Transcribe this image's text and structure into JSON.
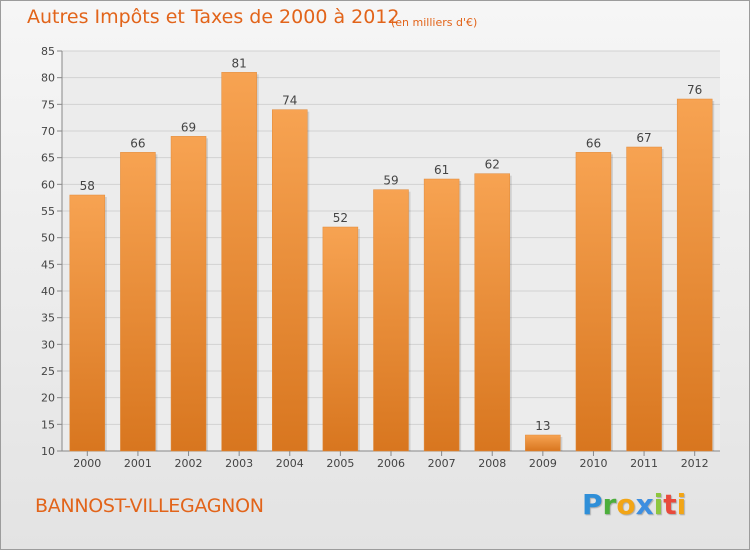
{
  "header": {
    "title": "Autres Impôts et Taxes de 2000 à 2012",
    "unit": "(en milliers d'€)"
  },
  "footer": {
    "commune": "BANNOST-VILLEGAGNON",
    "logo_letters": [
      "P",
      "r",
      "o",
      "x",
      "i",
      "t",
      "i"
    ],
    "logo_colors": [
      "#2f8fd8",
      "#4cae3c",
      "#f2a516",
      "#3d8ee0",
      "#8dc63f",
      "#e84a3c",
      "#f2a516"
    ]
  },
  "chart_data": {
    "type": "bar",
    "categories": [
      "2000",
      "2001",
      "2002",
      "2003",
      "2004",
      "2005",
      "2006",
      "2007",
      "2008",
      "2009",
      "2010",
      "2011",
      "2012"
    ],
    "values": [
      58,
      66,
      69,
      81,
      74,
      52,
      59,
      61,
      62,
      13,
      66,
      67,
      76
    ],
    "data_labels": [
      "58",
      "66",
      "69",
      "81",
      "74",
      "52",
      "59",
      "61",
      "62",
      "13",
      "66",
      "67",
      "76"
    ],
    "ylim": [
      10,
      85
    ],
    "yticks": [
      10,
      15,
      20,
      25,
      30,
      35,
      40,
      45,
      50,
      55,
      60,
      65,
      70,
      75,
      80,
      85
    ],
    "grid": true,
    "bar_color_top": "#f7a352",
    "bar_color_bottom": "#d8761f",
    "grid_color": "#d2d2d2"
  }
}
